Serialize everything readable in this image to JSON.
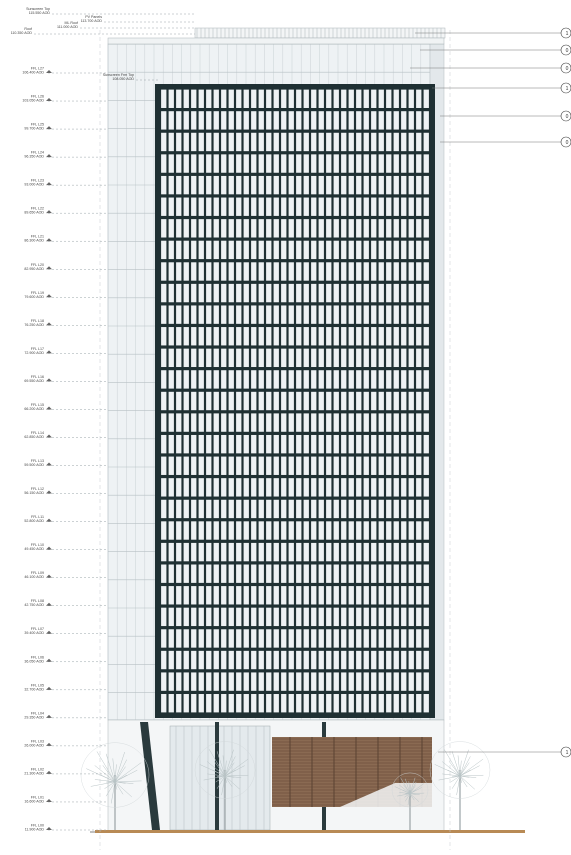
{
  "drawing": {
    "roof_levels": [
      {
        "name": "Sunscreen Top",
        "rl": "115.550 AOD"
      },
      {
        "name": "PV Panels",
        "rl": "113.700 AOD"
      },
      {
        "name": "ML Roof",
        "rl": "111.000 AOD"
      },
      {
        "name": "Roof",
        "rl": "110.350 AOD"
      },
      {
        "name": "Sunscreen Frm Top",
        "rl": "108.050 AOD"
      }
    ],
    "floor_levels": [
      {
        "name": "FFL L27",
        "rl": "106.400 AOD"
      },
      {
        "name": "FFL L26",
        "rl": "103.050 AOD"
      },
      {
        "name": "FFL L25",
        "rl": "99.700 AOD"
      },
      {
        "name": "FFL L24",
        "rl": "96.350 AOD"
      },
      {
        "name": "FFL L23",
        "rl": "93.000 AOD"
      },
      {
        "name": "FFL L22",
        "rl": "89.650 AOD"
      },
      {
        "name": "FFL L21",
        "rl": "86.300 AOD"
      },
      {
        "name": "FFL L20",
        "rl": "82.950 AOD"
      },
      {
        "name": "FFL L19",
        "rl": "79.600 AOD"
      },
      {
        "name": "FFL L18",
        "rl": "76.250 AOD"
      },
      {
        "name": "FFL L17",
        "rl": "72.900 AOD"
      },
      {
        "name": "FFL L16",
        "rl": "69.550 AOD"
      },
      {
        "name": "FFL L15",
        "rl": "66.200 AOD"
      },
      {
        "name": "FFL L14",
        "rl": "62.850 AOD"
      },
      {
        "name": "FFL L13",
        "rl": "59.500 AOD"
      },
      {
        "name": "FFL L12",
        "rl": "56.150 AOD"
      },
      {
        "name": "FFL L11",
        "rl": "52.800 AOD"
      },
      {
        "name": "FFL L10",
        "rl": "49.450 AOD"
      },
      {
        "name": "FFL L09",
        "rl": "46.100 AOD"
      },
      {
        "name": "FFL L08",
        "rl": "42.750 AOD"
      },
      {
        "name": "FFL L07",
        "rl": "39.400 AOD"
      },
      {
        "name": "FFL L06",
        "rl": "36.050 AOD"
      },
      {
        "name": "FFL L05",
        "rl": "32.700 AOD"
      },
      {
        "name": "FFL L04",
        "rl": "29.350 AOD"
      },
      {
        "name": "FFL L03",
        "rl": "26.000 AOD"
      },
      {
        "name": "FFL L02",
        "rl": "21.300 AOD"
      },
      {
        "name": "FFL L01",
        "rl": "16.600 AOD"
      },
      {
        "name": "FFL L00",
        "rl": "11.900 AOD"
      }
    ],
    "callouts": [
      "1",
      "0",
      "0",
      "1",
      "0",
      "0",
      "1"
    ],
    "colors": {
      "frame": "#1f3033",
      "glass_pale": "#e7edf1",
      "glass_window": "#eef2f4",
      "timber": "#8a6a52",
      "tree": "#b9c4c6",
      "line": "#9aa4a8"
    },
    "modules": {
      "columns": 36,
      "rows": 29
    }
  }
}
